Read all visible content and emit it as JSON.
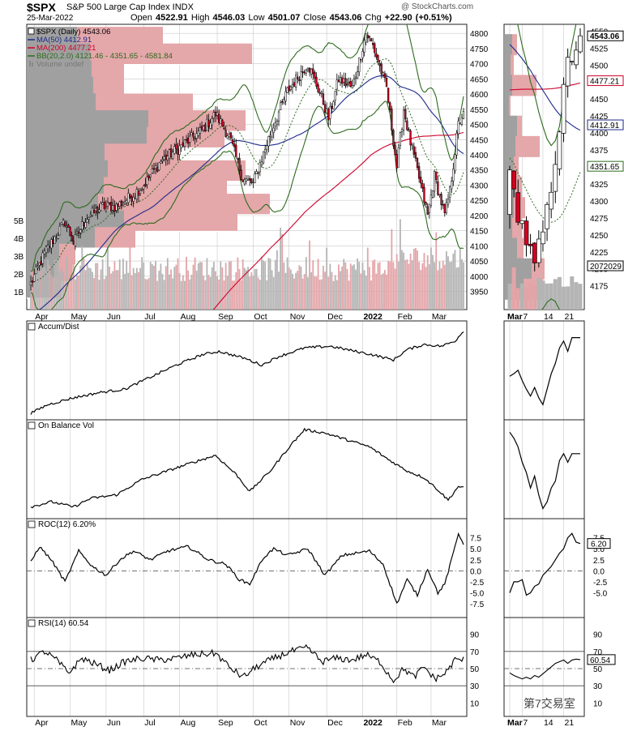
{
  "header": {
    "symbol": "$SPX",
    "name": "S&P 500 Large Cap Index INDX",
    "date": "25-Mar-2022",
    "open_label": "Open",
    "open": "4522.91",
    "high_label": "High",
    "high": "4546.03",
    "low_label": "Low",
    "low": "4501.07",
    "close_label": "Close",
    "close": "4543.06",
    "chg_label": "Chg",
    "chg": "+22.90 (+0.51%)",
    "credit": "@ StockCharts.com"
  },
  "watermark": "第7交易室",
  "colors": {
    "up": "#ffffff",
    "down": "#d40020",
    "ma50": "#1e2a8a",
    "ma200": "#d0002a",
    "bb": "#2e6b1e",
    "volume": "#a8a8a8",
    "vbp_up": "#a0a0a0",
    "vbp_down": "#e4a7aa",
    "grid": "#c8c8c8"
  },
  "chart_data": [
    {
      "type": "candlestick",
      "panel": "price",
      "legend": [
        {
          "key": "price",
          "text": "$SPX (Daily) 4543.06",
          "color": "#000000"
        },
        {
          "key": "ma50",
          "text": "MA(50) 4412.91",
          "color": "#1e2a8a"
        },
        {
          "key": "ma200",
          "text": "MA(200) 4477.21",
          "color": "#d0002a"
        },
        {
          "key": "bb",
          "text": "BB(20,2.0) 4121.46 - 4351.65 - 4581.84",
          "color": "#2e6b1e"
        },
        {
          "key": "vol",
          "text": "Volume undef",
          "color": "#777777"
        }
      ],
      "ylim": [
        3890,
        4830
      ],
      "yticks": [
        3950,
        4000,
        4050,
        4100,
        4150,
        4200,
        4250,
        4300,
        4350,
        4400,
        4450,
        4500,
        4550,
        4600,
        4650,
        4700,
        4750,
        4800
      ],
      "volume_ticks": [
        {
          "label": "1B",
          "value": 1
        },
        {
          "label": "2B",
          "value": 2
        },
        {
          "label": "3B",
          "value": 3
        },
        {
          "label": "4B",
          "value": 4
        },
        {
          "label": "5B",
          "value": 5
        }
      ],
      "x_labels": [
        {
          "label": "Apr",
          "i": 2
        },
        {
          "label": "May",
          "i": 23
        },
        {
          "label": "Jun",
          "i": 44
        },
        {
          "label": "Jul",
          "i": 66
        },
        {
          "label": "Aug",
          "i": 87
        },
        {
          "label": "Sep",
          "i": 109
        },
        {
          "label": "Oct",
          "i": 130
        },
        {
          "label": "Nov",
          "i": 151
        },
        {
          "label": "Dec",
          "i": 173
        },
        {
          "label": "2022",
          "i": 194,
          "bold": true
        },
        {
          "label": "Feb",
          "i": 214
        },
        {
          "label": "Mar",
          "i": 234
        }
      ],
      "price_anchors": [
        [
          0,
          3975
        ],
        [
          8,
          4075
        ],
        [
          20,
          4180
        ],
        [
          25,
          4110
        ],
        [
          32,
          4190
        ],
        [
          42,
          4230
        ],
        [
          50,
          4230
        ],
        [
          58,
          4260
        ],
        [
          66,
          4300
        ],
        [
          76,
          4380
        ],
        [
          86,
          4420
        ],
        [
          100,
          4480
        ],
        [
          108,
          4535
        ],
        [
          116,
          4460
        ],
        [
          124,
          4320
        ],
        [
          130,
          4305
        ],
        [
          140,
          4470
        ],
        [
          150,
          4610
        ],
        [
          162,
          4700
        ],
        [
          170,
          4590
        ],
        [
          174,
          4520
        ],
        [
          180,
          4650
        ],
        [
          188,
          4620
        ],
        [
          196,
          4800
        ],
        [
          200,
          4760
        ],
        [
          208,
          4620
        ],
        [
          214,
          4360
        ],
        [
          218,
          4550
        ],
        [
          222,
          4440
        ],
        [
          228,
          4300
        ],
        [
          232,
          4200
        ],
        [
          236,
          4330
        ],
        [
          242,
          4200
        ],
        [
          245,
          4280
        ],
        [
          250,
          4500
        ],
        [
          253,
          4543
        ]
      ],
      "vbp_bars": [
        {
          "price": 4787,
          "up": 62,
          "down": 106
        },
        {
          "price": 4732,
          "up": 78,
          "down": 200
        },
        {
          "price": 4677,
          "up": 80,
          "down": 40
        },
        {
          "price": 4622,
          "up": 82,
          "down": 38
        },
        {
          "price": 4567,
          "up": 85,
          "down": 120
        },
        {
          "price": 4512,
          "up": 150,
          "down": 120
        },
        {
          "price": 4457,
          "up": 148,
          "down": 96
        },
        {
          "price": 4402,
          "up": 96,
          "down": 92
        },
        {
          "price": 4347,
          "up": 100,
          "down": 170
        },
        {
          "price": 4292,
          "up": 95,
          "down": 152
        },
        {
          "price": 4237,
          "up": 88,
          "down": 212
        },
        {
          "price": 4182,
          "up": 120,
          "down": 140
        },
        {
          "price": 4127,
          "up": 84,
          "down": 50
        },
        {
          "price": 4072,
          "up": 40,
          "down": 20
        },
        {
          "price": 4017,
          "up": 38,
          "down": 18
        },
        {
          "price": 3962,
          "up": 32,
          "down": 10
        }
      ]
    },
    {
      "type": "line",
      "panel": "accum-dist",
      "title": "Accum/Dist",
      "anchors": [
        [
          0,
          0.02
        ],
        [
          10,
          0.12
        ],
        [
          25,
          0.2
        ],
        [
          40,
          0.26
        ],
        [
          55,
          0.3
        ],
        [
          70,
          0.44
        ],
        [
          85,
          0.58
        ],
        [
          100,
          0.7
        ],
        [
          110,
          0.74
        ],
        [
          125,
          0.66
        ],
        [
          135,
          0.58
        ],
        [
          145,
          0.68
        ],
        [
          160,
          0.78
        ],
        [
          175,
          0.8
        ],
        [
          190,
          0.74
        ],
        [
          200,
          0.7
        ],
        [
          212,
          0.64
        ],
        [
          220,
          0.76
        ],
        [
          230,
          0.82
        ],
        [
          240,
          0.8
        ],
        [
          248,
          0.86
        ],
        [
          253,
          0.98
        ]
      ]
    },
    {
      "type": "line",
      "panel": "obv",
      "title": "On Balance Vol",
      "anchors": [
        [
          0,
          0.08
        ],
        [
          12,
          0.14
        ],
        [
          25,
          0.08
        ],
        [
          35,
          0.18
        ],
        [
          50,
          0.22
        ],
        [
          65,
          0.4
        ],
        [
          80,
          0.5
        ],
        [
          95,
          0.6
        ],
        [
          108,
          0.68
        ],
        [
          120,
          0.46
        ],
        [
          128,
          0.26
        ],
        [
          140,
          0.5
        ],
        [
          152,
          0.8
        ],
        [
          160,
          0.98
        ],
        [
          172,
          0.94
        ],
        [
          185,
          0.86
        ],
        [
          198,
          0.78
        ],
        [
          210,
          0.62
        ],
        [
          220,
          0.5
        ],
        [
          230,
          0.42
        ],
        [
          238,
          0.28
        ],
        [
          244,
          0.16
        ],
        [
          250,
          0.32
        ],
        [
          253,
          0.3
        ]
      ]
    },
    {
      "type": "line",
      "panel": "roc",
      "title": "ROC(12) 6.20%",
      "ylim": [
        -9.5,
        10
      ],
      "yticks": [
        -7.5,
        -5.0,
        -2.5,
        0.0,
        2.5,
        5.0,
        7.5
      ],
      "last_label": "6.20",
      "anchors": [
        [
          0,
          2.0
        ],
        [
          5,
          5.5
        ],
        [
          12,
          2.5
        ],
        [
          20,
          -2.5
        ],
        [
          28,
          4.5
        ],
        [
          36,
          1.0
        ],
        [
          44,
          -1.0
        ],
        [
          52,
          2.5
        ],
        [
          60,
          4.5
        ],
        [
          70,
          2.5
        ],
        [
          80,
          4.5
        ],
        [
          92,
          5.5
        ],
        [
          104,
          2.5
        ],
        [
          114,
          1.5
        ],
        [
          122,
          -2.0
        ],
        [
          128,
          -3.0
        ],
        [
          136,
          3.0
        ],
        [
          142,
          5.0
        ],
        [
          150,
          3.5
        ],
        [
          162,
          5.0
        ],
        [
          172,
          -1.0
        ],
        [
          182,
          3.5
        ],
        [
          190,
          4.0
        ],
        [
          198,
          4.5
        ],
        [
          206,
          1.5
        ],
        [
          214,
          -7.5
        ],
        [
          220,
          -2.0
        ],
        [
          226,
          -5.5
        ],
        [
          232,
          0.5
        ],
        [
          238,
          -5.0
        ],
        [
          242,
          -3.0
        ],
        [
          246,
          2.5
        ],
        [
          250,
          8.5
        ],
        [
          253,
          6.2
        ]
      ]
    },
    {
      "type": "line",
      "panel": "rsi",
      "title": "RSI(14) 60.54",
      "ylim": [
        0,
        100
      ],
      "yticks": [
        10,
        30,
        50,
        70,
        90
      ],
      "last_label": "60.54",
      "anchors": [
        [
          0,
          60
        ],
        [
          8,
          70
        ],
        [
          15,
          60
        ],
        [
          22,
          45
        ],
        [
          30,
          62
        ],
        [
          38,
          55
        ],
        [
          46,
          48
        ],
        [
          55,
          58
        ],
        [
          65,
          62
        ],
        [
          75,
          60
        ],
        [
          85,
          62
        ],
        [
          95,
          66
        ],
        [
          108,
          68
        ],
        [
          116,
          52
        ],
        [
          124,
          40
        ],
        [
          132,
          52
        ],
        [
          142,
          62
        ],
        [
          152,
          70
        ],
        [
          162,
          74
        ],
        [
          170,
          58
        ],
        [
          178,
          62
        ],
        [
          188,
          60
        ],
        [
          196,
          66
        ],
        [
          204,
          58
        ],
        [
          212,
          36
        ],
        [
          218,
          50
        ],
        [
          224,
          40
        ],
        [
          230,
          52
        ],
        [
          236,
          38
        ],
        [
          242,
          44
        ],
        [
          248,
          60
        ],
        [
          253,
          60.54
        ]
      ]
    }
  ],
  "inset": {
    "x_labels": [
      {
        "label": "Mar",
        "i": 0,
        "bold": true
      },
      {
        "label": "7",
        "i": 3
      },
      {
        "label": "14",
        "i": 8
      },
      {
        "label": "21",
        "i": 13
      }
    ],
    "price_ylim": [
      4140,
      4560
    ],
    "price_yticks": [
      4175,
      4200,
      4225,
      4250,
      4275,
      4300,
      4325,
      4350,
      4375,
      4400,
      4425,
      4450,
      4475,
      4500,
      4525,
      4550
    ],
    "last_price": "4543.06",
    "ma200_label": "4477.21",
    "ma50_label": "4412.91",
    "bb_mid_label": "4351.65",
    "volume_label": "2072029",
    "roc_ylim": [
      -9.5,
      10
    ],
    "roc_yticks": [
      -5.0,
      -2.5,
      0.0,
      2.5,
      5.0,
      7.5
    ],
    "roc_last": "6.20",
    "rsi_yticks": [
      10,
      30,
      50,
      70,
      90
    ],
    "rsi_last": "60.54"
  }
}
